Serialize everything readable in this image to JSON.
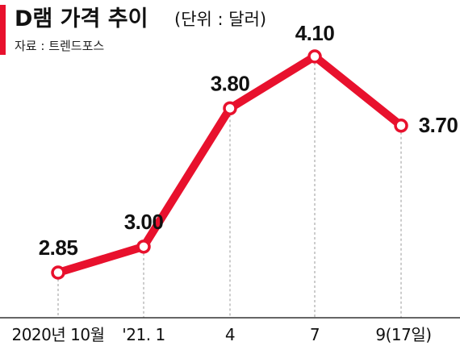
{
  "header": {
    "title": "D램 가격 추이",
    "unit": "(단위 : 달러)",
    "source": "자료 : 트렌드포스"
  },
  "colors": {
    "accent": "#e8112d",
    "text": "#111111",
    "guide": "#9a9a9a"
  },
  "chart_data": {
    "type": "line",
    "categories": [
      "2020년 10월",
      "'21. 1",
      "4",
      "7",
      "9(17일)"
    ],
    "values": [
      2.85,
      3.0,
      3.8,
      4.1,
      3.7
    ],
    "value_labels": [
      "2.85",
      "3.00",
      "3.80",
      "4.10",
      "3.70"
    ],
    "title": "D램 가격 추이",
    "unit": "(단위 : 달러)",
    "ylim": [
      2.6,
      4.2
    ],
    "grid": false
  }
}
